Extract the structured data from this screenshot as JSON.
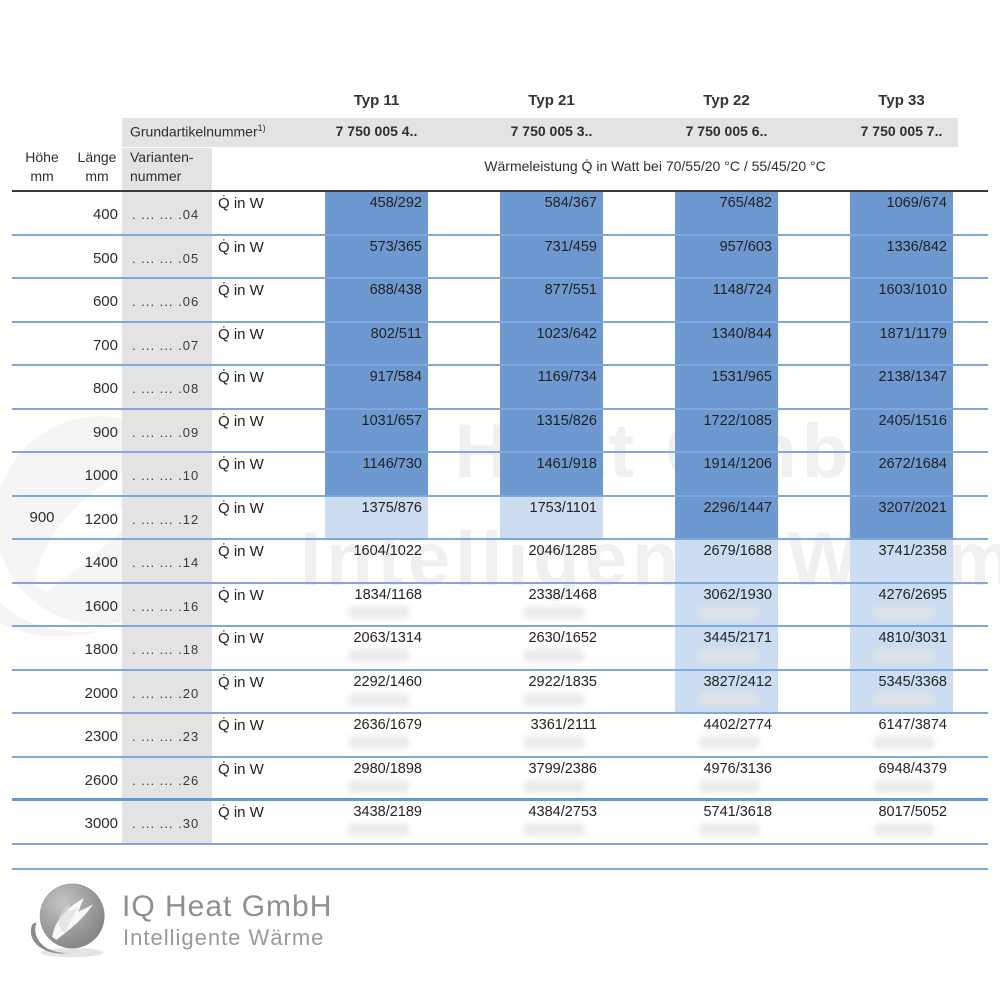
{
  "colors": {
    "dark_blue": "#6d98d0",
    "light_blue": "#ccdcf1",
    "row_line": "#7ea9df",
    "gray_band": "#e3e3e3",
    "text": "#2d2d2d"
  },
  "table": {
    "typ_headers": [
      "Typ 11",
      "Typ 21",
      "Typ 22",
      "Typ 33"
    ],
    "grundartikel_label": "Grundartikelnummer",
    "grundartikel_footnote": "1)",
    "grundartikel_numbers": [
      "7 750 005 4..",
      "7 750 005 3..",
      "7 750 005 6..",
      "7 750 005 7.."
    ],
    "hoehe_header": [
      "Höhe",
      "mm"
    ],
    "laenge_header": [
      "Länge",
      "mm"
    ],
    "variante_header": [
      "Varianten-",
      "nummer"
    ],
    "leistung_header": "Wärmeleistung Q̇ in Watt bei 70/55/20 °C / 55/45/20 °C",
    "hoehe_value": "900",
    "hoehe_row_index": 7,
    "q_label": "Q̇ in W",
    "rows": [
      {
        "laenge": "400",
        "variante": ". ... ... .04",
        "values": [
          "458/292",
          "584/367",
          "765/482",
          "1069/674"
        ],
        "shades": [
          "dark",
          "dark",
          "dark",
          "dark"
        ]
      },
      {
        "laenge": "500",
        "variante": ". ... ... .05",
        "values": [
          "573/365",
          "731/459",
          "957/603",
          "1336/842"
        ],
        "shades": [
          "dark",
          "dark",
          "dark",
          "dark"
        ]
      },
      {
        "laenge": "600",
        "variante": ". ... ... .06",
        "values": [
          "688/438",
          "877/551",
          "1148/724",
          "1603/1010"
        ],
        "shades": [
          "dark",
          "dark",
          "dark",
          "dark"
        ]
      },
      {
        "laenge": "700",
        "variante": ". ... ... .07",
        "values": [
          "802/511",
          "1023/642",
          "1340/844",
          "1871/1179"
        ],
        "shades": [
          "dark",
          "dark",
          "dark",
          "dark"
        ]
      },
      {
        "laenge": "800",
        "variante": ". ... ... .08",
        "values": [
          "917/584",
          "1169/734",
          "1531/965",
          "2138/1347"
        ],
        "shades": [
          "dark",
          "dark",
          "dark",
          "dark"
        ]
      },
      {
        "laenge": "900",
        "variante": ". ... ... .09",
        "values": [
          "1031/657",
          "1315/826",
          "1722/1085",
          "2405/1516"
        ],
        "shades": [
          "dark",
          "dark",
          "dark",
          "dark"
        ]
      },
      {
        "laenge": "1000",
        "variante": ". ... ... .10",
        "values": [
          "1146/730",
          "1461/918",
          "1914/1206",
          "2672/1684"
        ],
        "shades": [
          "dark",
          "dark",
          "dark",
          "dark"
        ]
      },
      {
        "laenge": "1200",
        "variante": ". ... ... .12",
        "values": [
          "1375/876",
          "1753/1101",
          "2296/1447",
          "3207/2021"
        ],
        "shades": [
          "light",
          "light",
          "dark",
          "dark"
        ]
      },
      {
        "laenge": "1400",
        "variante": ". ... ... .14",
        "values": [
          "1604/1022",
          "2046/1285",
          "2679/1688",
          "3741/2358"
        ],
        "shades": [
          "none",
          "none",
          "light",
          "light"
        ]
      },
      {
        "laenge": "1600",
        "variante": ". ... ... .16",
        "values": [
          "1834/1168",
          "2338/1468",
          "3062/1930",
          "4276/2695"
        ],
        "shades": [
          "none",
          "none",
          "light",
          "light"
        ]
      },
      {
        "laenge": "1800",
        "variante": ". ... ... .18",
        "values": [
          "2063/1314",
          "2630/1652",
          "3445/2171",
          "4810/3031"
        ],
        "shades": [
          "none",
          "none",
          "light",
          "light"
        ]
      },
      {
        "laenge": "2000",
        "variante": ". ... ... .20",
        "values": [
          "2292/1460",
          "2922/1835",
          "3827/2412",
          "5345/3368"
        ],
        "shades": [
          "none",
          "none",
          "light",
          "light"
        ]
      },
      {
        "laenge": "2300",
        "variante": ". ... ... .23",
        "values": [
          "2636/1679",
          "3361/2111",
          "4402/2774",
          "6147/3874"
        ],
        "shades": [
          "none",
          "none",
          "none",
          "none"
        ]
      },
      {
        "laenge": "2600",
        "variante": ". ... ... .26",
        "values": [
          "2980/1898",
          "3799/2386",
          "4976/3136",
          "6948/4379"
        ],
        "shades": [
          "none",
          "none",
          "none",
          "none"
        ]
      },
      {
        "laenge": "3000",
        "variante": ". ... ... .30",
        "values": [
          "3438/2189",
          "4384/2753",
          "5741/3618",
          "8017/5052"
        ],
        "shades": [
          "none",
          "none",
          "none",
          "none"
        ]
      }
    ]
  },
  "watermark": {
    "line1": "iQ Heat GmbH",
    "line2": "Intelligente Wärme"
  },
  "footer": {
    "company": "IQ Heat GmbH",
    "tagline": "Intelligente Wärme"
  }
}
